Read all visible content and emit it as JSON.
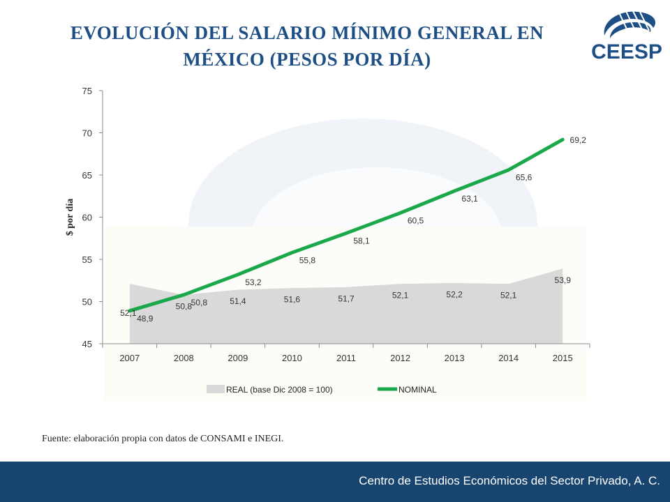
{
  "title": "EVOLUCIÓN DEL SALARIO MÍNIMO GENERAL EN MÉXICO (PESOS POR DÍA)",
  "logo": {
    "text": "CEESP",
    "icon": "ceesp-logo-icon",
    "color": "#1d4f86"
  },
  "source": "Fuente: elaboración propia con datos de CONSAMI e INEGI.",
  "footer": {
    "text": "Centro de Estudios Económicos del Sector Privado, A. C.",
    "color": "#18456f"
  },
  "chart_data": {
    "type": "line",
    "categories": [
      "2007",
      "2008",
      "2009",
      "2010",
      "2011",
      "2012",
      "2013",
      "2014",
      "2015"
    ],
    "series": [
      {
        "name": "REAL (base Dic 2008 = 100)",
        "type": "area",
        "color": "#d9d9d9",
        "values": [
          52.1,
          50.8,
          51.4,
          51.6,
          51.7,
          52.1,
          52.2,
          52.1,
          53.9
        ],
        "labels": [
          "52,1",
          "50,8",
          "51,4",
          "51,6",
          "51,7",
          "52,1",
          "52,2",
          "52,1",
          "53,9"
        ]
      },
      {
        "name": "NOMINAL",
        "type": "line",
        "color": "#1aa84a",
        "values": [
          48.9,
          50.8,
          53.2,
          55.8,
          58.1,
          60.5,
          63.1,
          65.6,
          69.2
        ],
        "labels": [
          "48,9",
          "50,8",
          "53,2",
          "55,8",
          "58,1",
          "60,5",
          "63,1",
          "65,6",
          "69,2"
        ]
      }
    ],
    "ylabel": "$ por día",
    "ylim": [
      45,
      75
    ],
    "yticks": [
      "45",
      "50",
      "55",
      "60",
      "65",
      "70",
      "75"
    ],
    "legend": "bottom",
    "grid": false
  }
}
